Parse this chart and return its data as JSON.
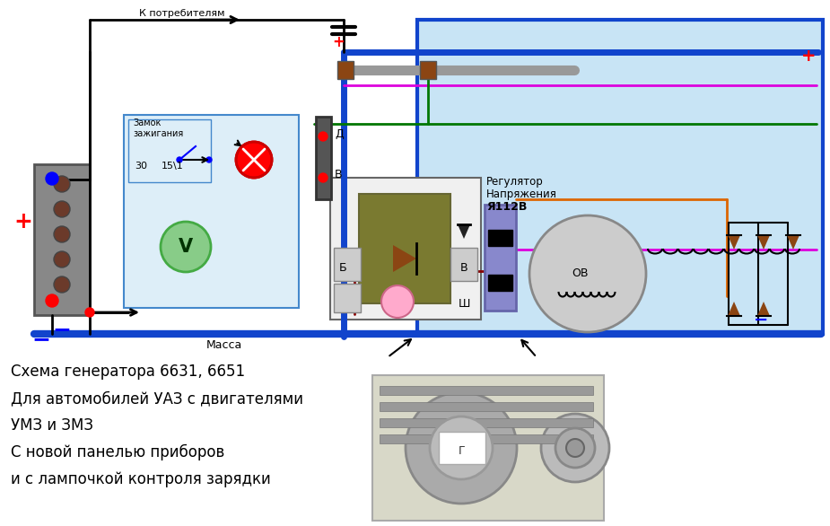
{
  "bg_color": "#ffffff",
  "circuit_bg": "#c8e4f5",
  "panel_bg": "#ddeef8",
  "title_lines": [
    "Схема генератора 6631, 6651",
    "Для автомобилей УАЗ с двигателями",
    "УМЗ и ЗМЗ",
    "С новой панелью приборов",
    "и с лампочкой контроля зарядки"
  ],
  "label_K_potrebitelyam": "К потребителям",
  "label_massa": "Масса",
  "label_regulator_1": "Регулятор",
  "label_regulator_2": "Напряжения",
  "label_regulator_3": "Я112В",
  "label_zamok_1": "Замок",
  "label_zamok_2": "зажигания",
  "label_30": "30",
  "label_15_1": "15\\1",
  "label_D": "Д",
  "label_B_upper": "В",
  "label_B_reg": "Б",
  "label_V_reg": "В",
  "label_Sh": "Ш",
  "label_OV": "ОВ",
  "plus_color": "#ff0000",
  "minus_color": "#0000cc",
  "blue_wire": "#1144cc",
  "green_wire": "#007700",
  "pink_wire": "#dd00dd",
  "orange_wire": "#dd6600",
  "dark_red_wire": "#880000",
  "black_wire": "#000000",
  "gray_color": "#888888",
  "brown_color": "#8B4513",
  "olive_color": "#7a7a30",
  "purple_color": "#8888cc"
}
